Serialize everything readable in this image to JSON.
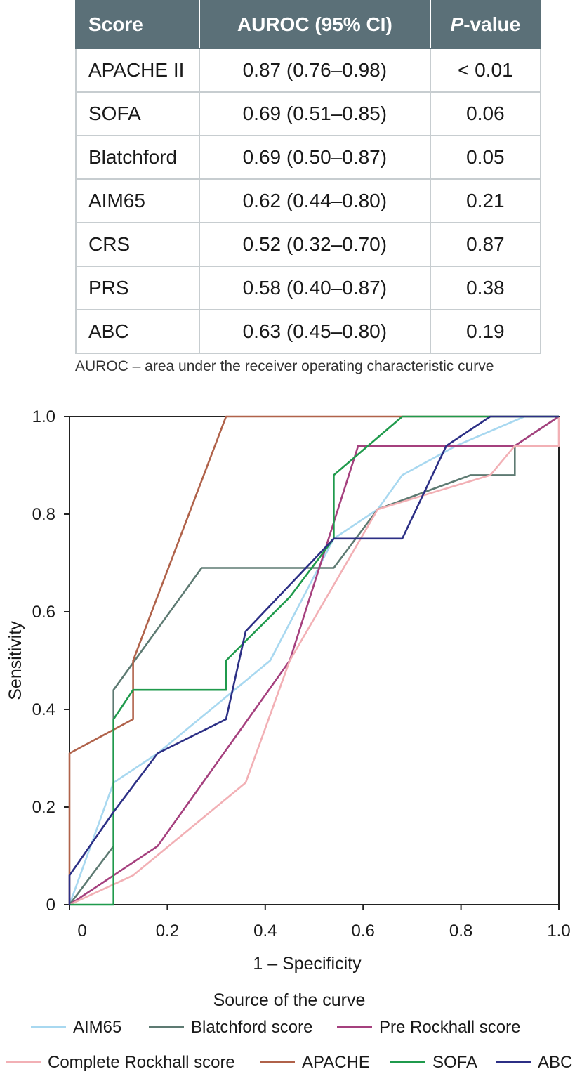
{
  "table": {
    "headers": [
      "Score",
      "AUROC (95% CI)",
      "-value"
    ],
    "p_header_prefix": "P",
    "rows": [
      [
        "APACHE II",
        "0.87 (0.76–0.98)",
        "< 0.01"
      ],
      [
        "SOFA",
        "0.69 (0.51–0.85)",
        "0.06"
      ],
      [
        "Blatchford",
        "0.69 (0.50–0.87)",
        "0.05"
      ],
      [
        "AIM65",
        "0.62 (0.44–0.80)",
        "0.21"
      ],
      [
        "CRS",
        "0.52 (0.32–0.70)",
        "0.87"
      ],
      [
        "PRS",
        "0.58 (0.40–0.87)",
        "0.38"
      ],
      [
        "ABC",
        "0.63 (0.45–0.80)",
        "0.19"
      ]
    ],
    "footnote": "AUROC – area under the receiver operating characteristic curve",
    "header_color": "#5b7078"
  },
  "chart_data": {
    "type": "line",
    "title": "",
    "xlabel": "1 – Specificity",
    "ylabel": "Sensitivity",
    "xlim": [
      0,
      1
    ],
    "ylim": [
      0,
      1
    ],
    "x_ticks": [
      "0",
      "0.2",
      "0.4",
      "0.6",
      "0.8",
      "1.0"
    ],
    "y_ticks": [
      "0",
      "0.2",
      "0.4",
      "0.6",
      "0.8",
      "1.0"
    ],
    "grid": false,
    "legend_title": "Source of the curve",
    "legend_position": "bottom",
    "series": [
      {
        "name": "AIM65",
        "color": "#a8d8f0",
        "points": [
          [
            0,
            0
          ],
          [
            0.09,
            0.25
          ],
          [
            0.18,
            0.31
          ],
          [
            0.41,
            0.5
          ],
          [
            0.54,
            0.75
          ],
          [
            0.63,
            0.81
          ],
          [
            0.68,
            0.88
          ],
          [
            0.79,
            0.94
          ],
          [
            0.93,
            1.0
          ],
          [
            1.0,
            1.0
          ]
        ]
      },
      {
        "name": "Blatchford score",
        "color": "#5d7a72",
        "points": [
          [
            0,
            0
          ],
          [
            0.09,
            0.12
          ],
          [
            0.09,
            0.44
          ],
          [
            0.27,
            0.69
          ],
          [
            0.54,
            0.69
          ],
          [
            0.63,
            0.81
          ],
          [
            0.82,
            0.88
          ],
          [
            0.91,
            0.88
          ],
          [
            0.91,
            0.94
          ],
          [
            1.0,
            1.0
          ]
        ]
      },
      {
        "name": "Pre Rockhall score",
        "color": "#a5407e",
        "points": [
          [
            0,
            0
          ],
          [
            0.18,
            0.12
          ],
          [
            0.45,
            0.5
          ],
          [
            0.59,
            0.94
          ],
          [
            0.91,
            0.94
          ],
          [
            1.0,
            1.0
          ]
        ]
      },
      {
        "name": "Complete Rockhall score",
        "color": "#f2b0b5",
        "points": [
          [
            0,
            0
          ],
          [
            0.13,
            0.06
          ],
          [
            0.36,
            0.25
          ],
          [
            0.45,
            0.5
          ],
          [
            0.63,
            0.81
          ],
          [
            0.86,
            0.88
          ],
          [
            0.91,
            0.94
          ],
          [
            1.0,
            0.94
          ],
          [
            1.0,
            1.0
          ]
        ]
      },
      {
        "name": "APACHE",
        "color": "#b0624a",
        "points": [
          [
            0,
            0
          ],
          [
            0,
            0.31
          ],
          [
            0.13,
            0.38
          ],
          [
            0.13,
            0.44
          ],
          [
            0.13,
            0.5
          ],
          [
            0.32,
            1.0
          ],
          [
            1.0,
            1.0
          ]
        ]
      },
      {
        "name": "SOFA",
        "color": "#1f9a4c",
        "points": [
          [
            0,
            0
          ],
          [
            0.09,
            0
          ],
          [
            0.09,
            0.38
          ],
          [
            0.13,
            0.44
          ],
          [
            0.32,
            0.44
          ],
          [
            0.32,
            0.5
          ],
          [
            0.45,
            0.63
          ],
          [
            0.54,
            0.75
          ],
          [
            0.54,
            0.88
          ],
          [
            0.68,
            1.0
          ],
          [
            1.0,
            1.0
          ]
        ]
      },
      {
        "name": "ABC",
        "color": "#2c2f85",
        "points": [
          [
            0,
            0
          ],
          [
            0,
            0.06
          ],
          [
            0.09,
            0.19
          ],
          [
            0.18,
            0.31
          ],
          [
            0.32,
            0.38
          ],
          [
            0.36,
            0.56
          ],
          [
            0.54,
            0.75
          ],
          [
            0.68,
            0.75
          ],
          [
            0.77,
            0.94
          ],
          [
            0.86,
            1.0
          ],
          [
            1.0,
            1.0
          ]
        ]
      }
    ]
  }
}
